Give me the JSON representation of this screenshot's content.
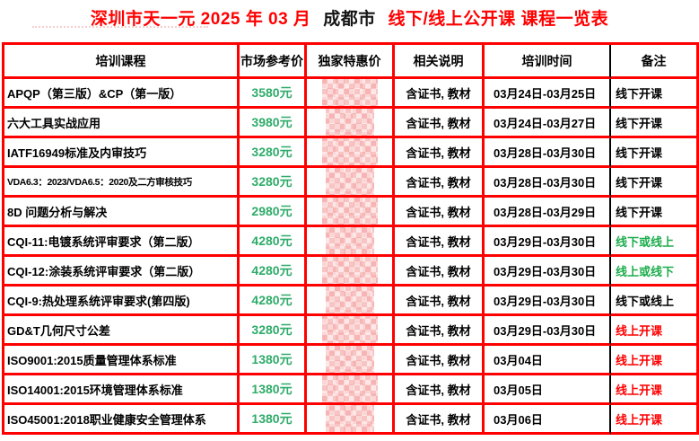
{
  "title": {
    "part1_red": "深圳市天一元 2025 年 03 月",
    "part2_black": "成都市",
    "part3_red": "线下/线上公开课 课程一览表"
  },
  "table": {
    "headers": [
      "培训课程",
      "市场参考价",
      "独家特惠价",
      "相关说明",
      "培训时间",
      "备注"
    ],
    "rows": [
      {
        "course": "APQP（第三版）&CP（第一版）",
        "market_price": "3580元",
        "special_price_censored": true,
        "description": "含证书, 教材",
        "time": "03月24日-03月25日",
        "remark": "线下开课",
        "remark_color": "black"
      },
      {
        "course": "六大工具实战应用",
        "market_price": "3980元",
        "special_price_censored": true,
        "description": "含证书, 教材",
        "time": "03月24日-03月27日",
        "remark": "线下开课",
        "remark_color": "black"
      },
      {
        "course": "IATF16949标准及内审技巧",
        "market_price": "3280元",
        "special_price_censored": true,
        "description": "含证书, 教材",
        "time": "03月28日-03月30日",
        "remark": "线下开课",
        "remark_color": "black"
      },
      {
        "course": "VDA6.3：2023/VDA6.5：2020及二方审核技巧",
        "market_price": "3280元",
        "special_price_censored": true,
        "description": "含证书, 教材",
        "time": "03月28日-03月30日",
        "remark": "线下开课",
        "remark_color": "black"
      },
      {
        "course": "8D 问题分析与解决",
        "market_price": "2980元",
        "special_price_censored": true,
        "description": "含证书, 教材",
        "time": "03月28日-03月29日",
        "remark": "线下开课",
        "remark_color": "black"
      },
      {
        "course": "CQI-11:电镀系统评审要求（第二版）",
        "market_price": "4280元",
        "special_price_censored": true,
        "description": "含证书, 教材",
        "time": "03月29日-03月30日",
        "remark": "线下或线上",
        "remark_color": "green"
      },
      {
        "course": "CQI-12:涂装系统评审要求（第二版）",
        "market_price": "4280元",
        "special_price_censored": true,
        "description": "含证书, 教材",
        "time": "03月29日-03月30日",
        "remark": "线上或线下",
        "remark_color": "green"
      },
      {
        "course": "CQI-9:热处理系统评审要求(第四版)",
        "market_price": "4280元",
        "special_price_censored": true,
        "description": "含证书, 教材",
        "time": "03月29日-03月30日",
        "remark": "线下或线上",
        "remark_color": "black"
      },
      {
        "course": "GD&T几何尺寸公差",
        "market_price": "3280元",
        "special_price_censored": true,
        "description": "含证书, 教材",
        "time": "03月29日-03月30日",
        "remark": "线上开课",
        "remark_color": "red"
      },
      {
        "course": "ISO9001:2015质量管理体系标准",
        "market_price": "1380元",
        "special_price_censored": true,
        "description": "含证书, 教材",
        "time": "03月04日",
        "remark": "线上开课",
        "remark_color": "red"
      },
      {
        "course": "ISO14001:2015环境管理体系标准",
        "market_price": "1380元",
        "special_price_censored": true,
        "description": "含证书, 教材",
        "time": "03月05日",
        "remark": "线上开课",
        "remark_color": "red"
      },
      {
        "course": "ISO45001:2018职业健康安全管理体系",
        "market_price": "1380元",
        "special_price_censored": true,
        "description": "含证书, 教材",
        "time": "03月06日",
        "remark": "线上开课",
        "remark_color": "red"
      }
    ],
    "colors": {
      "border_red": "#ff0000",
      "price_green": "#2fab6a",
      "black": "#000000",
      "green": "#1fad4e",
      "red": "#ff0000"
    }
  }
}
